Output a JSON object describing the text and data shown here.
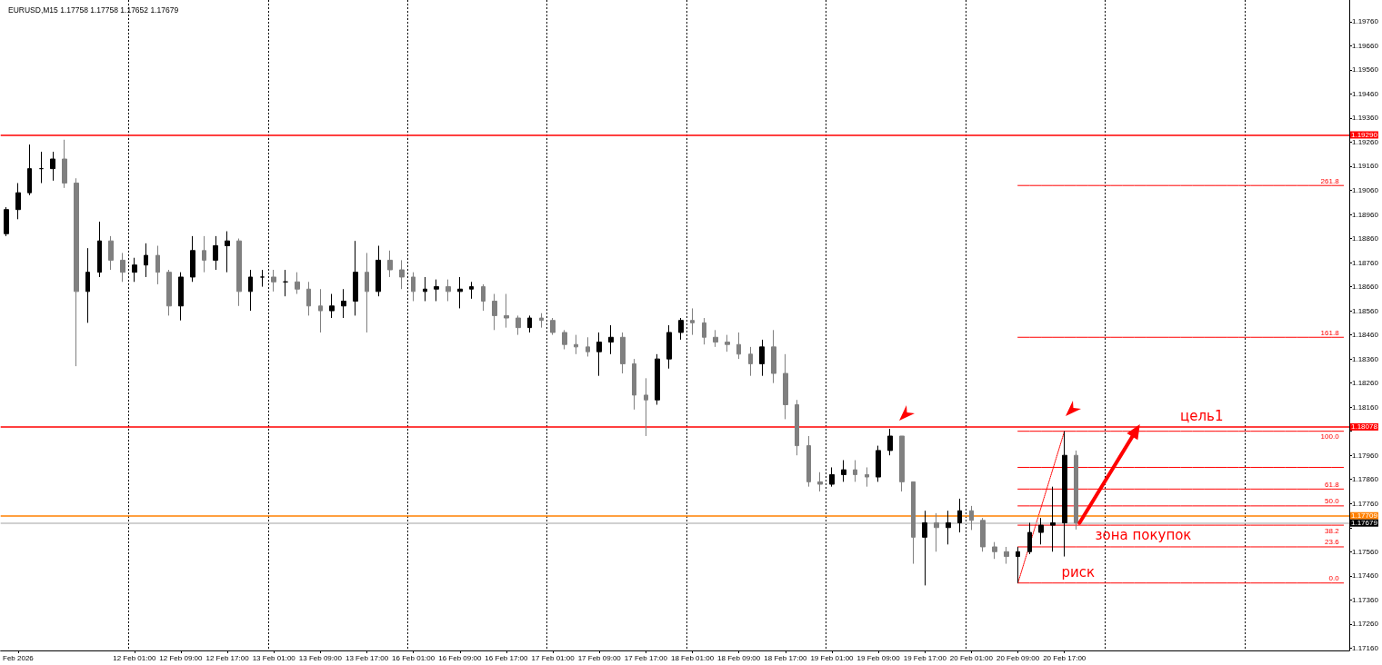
{
  "chart_data": {
    "type": "candlestick",
    "title": "EURUSD,M15 1.17758 1.17758 1.17652 1.17679",
    "categories": [
      null,
      "Feb 2026",
      null,
      null,
      null,
      null,
      null,
      null,
      null,
      null,
      null,
      "12 Feb 01:00",
      null,
      null,
      null,
      "12 Feb 09:00",
      null,
      null,
      null,
      "12 Feb 17:00",
      null,
      null,
      null,
      "13 Feb 01:00",
      null,
      null,
      null,
      "13 Feb 09:00",
      null,
      null,
      null,
      "13 Feb 17:00",
      null,
      null,
      null,
      "16 Feb 01:00",
      null,
      null,
      null,
      "16 Feb 09:00",
      null,
      null,
      null,
      "16 Feb 17:00",
      null,
      null,
      null,
      "17 Feb 01:00",
      null,
      null,
      null,
      "17 Feb 09:00",
      null,
      null,
      null,
      "17 Feb 17:00",
      null,
      null,
      null,
      "18 Feb 01:00",
      null,
      null,
      null,
      "18 Feb 09:00",
      null,
      null,
      null,
      "18 Feb 17:00",
      null,
      null,
      null,
      "19 Feb 01:00",
      null,
      null,
      null,
      "19 Feb 09:00",
      null,
      null,
      null,
      "19 Feb 17:00",
      null,
      null,
      null,
      "20 Feb 01:00",
      null,
      null,
      null,
      "20 Feb 09:00",
      null,
      null,
      null,
      "20 Feb 17:00",
      null,
      null,
      null,
      null,
      null,
      null,
      null,
      null,
      null,
      null,
      null,
      null,
      null,
      null,
      null,
      null,
      null,
      null,
      null,
      null,
      null,
      null,
      null,
      null
    ],
    "ohlc": [
      [
        1.1888,
        1.1899,
        1.1887,
        1.1898
      ],
      [
        1.1898,
        1.1909,
        1.1894,
        1.1905
      ],
      [
        1.1905,
        1.1925,
        1.1904,
        1.1915
      ],
      [
        1.1915,
        1.1922,
        1.1909,
        1.1915
      ],
      [
        1.1915,
        1.1922,
        1.191,
        1.1919
      ],
      [
        1.1919,
        1.1927,
        1.1907,
        1.1909
      ],
      [
        1.1909,
        1.1911,
        1.1833,
        1.1864
      ],
      [
        1.1864,
        1.1882,
        1.1851,
        1.1872
      ],
      [
        1.1872,
        1.1893,
        1.187,
        1.1885
      ],
      [
        1.1885,
        1.1887,
        1.1873,
        1.1877
      ],
      [
        1.1877,
        1.188,
        1.1868,
        1.1872
      ],
      [
        1.1872,
        1.1878,
        1.1868,
        1.1875
      ],
      [
        1.1875,
        1.1884,
        1.187,
        1.1879
      ],
      [
        1.1879,
        1.1883,
        1.1867,
        1.1872
      ],
      [
        1.1872,
        1.1873,
        1.1854,
        1.1858
      ],
      [
        1.1858,
        1.1872,
        1.1852,
        1.187
      ],
      [
        1.187,
        1.1887,
        1.1868,
        1.1881
      ],
      [
        1.1881,
        1.1887,
        1.1872,
        1.1877
      ],
      [
        1.1877,
        1.1887,
        1.1873,
        1.1883
      ],
      [
        1.1883,
        1.1889,
        1.1872,
        1.1885
      ],
      [
        1.1885,
        1.1886,
        1.1858,
        1.1864
      ],
      [
        1.1864,
        1.1873,
        1.1856,
        1.187
      ],
      [
        1.187,
        1.1873,
        1.1866,
        1.187
      ],
      [
        1.187,
        1.1873,
        1.1864,
        1.1868
      ],
      [
        1.1868,
        1.1873,
        1.1862,
        1.1868
      ],
      [
        1.1868,
        1.1872,
        1.1863,
        1.1865
      ],
      [
        1.1865,
        1.1868,
        1.1854,
        1.1858
      ],
      [
        1.1858,
        1.1865,
        1.1847,
        1.1856
      ],
      [
        1.1856,
        1.1863,
        1.1853,
        1.1858
      ],
      [
        1.1858,
        1.1865,
        1.1853,
        1.186
      ],
      [
        1.186,
        1.1885,
        1.1854,
        1.1872
      ],
      [
        1.1872,
        1.188,
        1.1847,
        1.1864
      ],
      [
        1.1864,
        1.1883,
        1.1862,
        1.1877
      ],
      [
        1.1877,
        1.1881,
        1.187,
        1.1873
      ],
      [
        1.1873,
        1.1877,
        1.1865,
        1.187
      ],
      [
        1.187,
        1.1872,
        1.186,
        1.1864
      ],
      [
        1.1864,
        1.187,
        1.186,
        1.1865
      ],
      [
        1.1865,
        1.1869,
        1.186,
        1.1866
      ],
      [
        1.1866,
        1.1869,
        1.186,
        1.1864
      ],
      [
        1.1864,
        1.187,
        1.1857,
        1.1865
      ],
      [
        1.1865,
        1.1868,
        1.1861,
        1.1866
      ],
      [
        1.1866,
        1.1867,
        1.1856,
        1.186
      ],
      [
        1.186,
        1.1863,
        1.1848,
        1.1854
      ],
      [
        1.1854,
        1.1863,
        1.1849,
        1.1853
      ],
      [
        1.1853,
        1.1854,
        1.1846,
        1.1849
      ],
      [
        1.1849,
        1.1854,
        1.1847,
        1.1853
      ],
      [
        1.1853,
        1.1855,
        1.1849,
        1.1852
      ],
      [
        1.1852,
        1.1853,
        1.1846,
        1.1847
      ],
      [
        1.1847,
        1.1848,
        1.184,
        1.1842
      ],
      [
        1.1842,
        1.1846,
        1.1838,
        1.1841
      ],
      [
        1.1841,
        1.1845,
        1.1837,
        1.1839
      ],
      [
        1.1839,
        1.1847,
        1.1829,
        1.1843
      ],
      [
        1.1843,
        1.185,
        1.1838,
        1.1845
      ],
      [
        1.1845,
        1.1847,
        1.183,
        1.1834
      ],
      [
        1.1834,
        1.1836,
        1.1815,
        1.1821
      ],
      [
        1.1821,
        1.1828,
        1.1804,
        1.1819
      ],
      [
        1.1819,
        1.1838,
        1.1817,
        1.1836
      ],
      [
        1.1836,
        1.185,
        1.1832,
        1.1847
      ],
      [
        1.1847,
        1.1853,
        1.1844,
        1.1852
      ],
      [
        1.1852,
        1.1857,
        1.1846,
        1.1851
      ],
      [
        1.1851,
        1.1853,
        1.1842,
        1.1845
      ],
      [
        1.1845,
        1.1848,
        1.1841,
        1.1843
      ],
      [
        1.1843,
        1.1846,
        1.1839,
        1.1842
      ],
      [
        1.1842,
        1.1847,
        1.1836,
        1.1838
      ],
      [
        1.1838,
        1.1841,
        1.1829,
        1.1834
      ],
      [
        1.1834,
        1.1844,
        1.1829,
        1.1841
      ],
      [
        1.1841,
        1.1848,
        1.1826,
        1.183
      ],
      [
        1.183,
        1.1838,
        1.1811,
        1.1817
      ],
      [
        1.1817,
        1.1819,
        1.1796,
        1.18
      ],
      [
        1.18,
        1.1804,
        1.1783,
        1.1785
      ],
      [
        1.1785,
        1.1789,
        1.1781,
        1.1784
      ],
      [
        1.1784,
        1.1791,
        1.1783,
        1.1788
      ],
      [
        1.1788,
        1.1794,
        1.1785,
        1.179
      ],
      [
        1.179,
        1.1794,
        1.1785,
        1.1788
      ],
      [
        1.1788,
        1.1791,
        1.1783,
        1.1787
      ],
      [
        1.1787,
        1.18,
        1.1785,
        1.1798
      ],
      [
        1.1798,
        1.1807,
        1.1796,
        1.1804
      ],
      [
        1.1804,
        1.1804,
        1.1781,
        1.1785
      ],
      [
        1.1785,
        1.1785,
        1.1751,
        1.1762
      ],
      [
        1.1762,
        1.1773,
        1.1742,
        1.1768
      ],
      [
        1.1768,
        1.1772,
        1.1756,
        1.1766
      ],
      [
        1.1766,
        1.1773,
        1.1759,
        1.1768
      ],
      [
        1.1768,
        1.1778,
        1.1764,
        1.1773
      ],
      [
        1.1773,
        1.1775,
        1.1765,
        1.1769
      ],
      [
        1.1769,
        1.177,
        1.1756,
        1.1758
      ],
      [
        1.1758,
        1.176,
        1.1753,
        1.1756
      ],
      [
        1.1756,
        1.1758,
        1.1751,
        1.1754
      ],
      [
        1.1754,
        1.1758,
        1.1743,
        1.1756
      ],
      [
        1.1756,
        1.1768,
        1.1755,
        1.1764
      ],
      [
        1.1764,
        1.177,
        1.1759,
        1.1767
      ],
      [
        1.1767,
        1.1783,
        1.1756,
        1.1768
      ],
      [
        1.1768,
        1.1806,
        1.1754,
        1.1796
      ],
      [
        1.1796,
        1.1798,
        1.17652,
        1.17679
      ],
      null,
      null,
      null,
      null,
      null,
      null,
      null,
      null,
      null,
      null,
      null,
      null,
      null,
      null,
      null,
      null,
      null,
      null,
      null,
      null,
      null,
      null,
      null
    ],
    "colors": [
      "#000000",
      "#000000",
      "#000000",
      "#000000",
      "#000000",
      "#808080",
      "#808080",
      "#000000",
      "#000000",
      "#808080",
      "#808080",
      "#000000",
      "#000000",
      "#808080",
      "#808080",
      "#000000",
      "#000000",
      "#808080",
      "#000000",
      "#000000",
      "#808080",
      "#000000",
      "#000000",
      "#808080",
      "#000000",
      "#808080",
      "#808080",
      "#808080",
      "#000000",
      "#000000",
      "#000000",
      "#808080",
      "#000000",
      "#808080",
      "#808080",
      "#808080",
      "#000000",
      "#000000",
      "#808080",
      "#000000",
      "#000000",
      "#808080",
      "#808080",
      "#808080",
      "#808080",
      "#000000",
      "#808080",
      "#808080",
      "#808080",
      "#808080",
      "#808080",
      "#000000",
      "#000000",
      "#808080",
      "#808080",
      "#808080",
      "#000000",
      "#000000",
      "#000000",
      "#808080",
      "#808080",
      "#808080",
      "#808080",
      "#808080",
      "#808080",
      "#000000",
      "#808080",
      "#808080",
      "#808080",
      "#808080",
      "#808080",
      "#000000",
      "#000000",
      "#808080",
      "#808080",
      "#000000",
      "#000000",
      "#808080",
      "#808080",
      "#000000",
      "#808080",
      "#000000",
      "#000000",
      "#808080",
      "#808080",
      "#808080",
      "#808080",
      "#000000",
      "#000000",
      "#000000",
      "#000000",
      "#000000",
      "#808080",
      null,
      null,
      null,
      null,
      null,
      null,
      null,
      null,
      null,
      null,
      null,
      null,
      null,
      null,
      null,
      null,
      null,
      null,
      null,
      null,
      null,
      null,
      null
    ],
    "series": [
      {
        "type": "line",
        "name": "261.8",
        "color": "#ff0000",
        "values": [
          null,
          null,
          null,
          null,
          null,
          null,
          null,
          null,
          null,
          null,
          null,
          null,
          null,
          null,
          null,
          null,
          null,
          null,
          null,
          null,
          null,
          null,
          null,
          null,
          null,
          null,
          null,
          null,
          null,
          null,
          null,
          null,
          null,
          null,
          null,
          null,
          null,
          null,
          null,
          null,
          null,
          null,
          null,
          null,
          null,
          null,
          null,
          null,
          null,
          null,
          null,
          null,
          null,
          null,
          null,
          null,
          null,
          null,
          null,
          null,
          null,
          null,
          null,
          null,
          null,
          null,
          null,
          null,
          null,
          null,
          null,
          null,
          null,
          null,
          null,
          null,
          null,
          null,
          null,
          null,
          null,
          null,
          null,
          null,
          null,
          null,
          null,
          1.1908,
          1.1908,
          1.1908,
          1.1908,
          1.1908,
          1.1908,
          1.1908,
          1.1908,
          1.1908,
          1.1908,
          1.1908,
          1.1908,
          1.1908,
          1.1908,
          1.1908,
          1.1908,
          1.1908,
          1.1908,
          1.1908,
          1.1908,
          1.1908,
          1.1908,
          1.1908,
          1.1908,
          1.1908,
          1.1908,
          1.1908,
          1.1908,
          1.1908
        ]
      },
      {
        "type": "line",
        "name": "161.8",
        "color": "#ff0000",
        "values": [
          null,
          null,
          null,
          null,
          null,
          null,
          null,
          null,
          null,
          null,
          null,
          null,
          null,
          null,
          null,
          null,
          null,
          null,
          null,
          null,
          null,
          null,
          null,
          null,
          null,
          null,
          null,
          null,
          null,
          null,
          null,
          null,
          null,
          null,
          null,
          null,
          null,
          null,
          null,
          null,
          null,
          null,
          null,
          null,
          null,
          null,
          null,
          null,
          null,
          null,
          null,
          null,
          null,
          null,
          null,
          null,
          null,
          null,
          null,
          null,
          null,
          null,
          null,
          null,
          null,
          null,
          null,
          null,
          null,
          null,
          null,
          null,
          null,
          null,
          null,
          null,
          null,
          null,
          null,
          null,
          null,
          null,
          null,
          null,
          null,
          null,
          null,
          1.1845,
          1.1845,
          1.1845,
          1.1845,
          1.1845,
          1.1845,
          1.1845,
          1.1845,
          1.1845,
          1.1845,
          1.1845,
          1.1845,
          1.1845,
          1.1845,
          1.1845,
          1.1845,
          1.1845,
          1.1845,
          1.1845,
          1.1845,
          1.1845,
          1.1845,
          1.1845,
          1.1845,
          1.1845,
          1.1845,
          1.1845,
          1.1845,
          1.1845
        ]
      },
      {
        "type": "line",
        "name": "100.0",
        "color": "#ff0000",
        "values": [
          null,
          null,
          null,
          null,
          null,
          null,
          null,
          null,
          null,
          null,
          null,
          null,
          null,
          null,
          null,
          null,
          null,
          null,
          null,
          null,
          null,
          null,
          null,
          null,
          null,
          null,
          null,
          null,
          null,
          null,
          null,
          null,
          null,
          null,
          null,
          null,
          null,
          null,
          null,
          null,
          null,
          null,
          null,
          null,
          null,
          null,
          null,
          null,
          null,
          null,
          null,
          null,
          null,
          null,
          null,
          null,
          null,
          null,
          null,
          null,
          null,
          null,
          null,
          null,
          null,
          null,
          null,
          null,
          null,
          null,
          null,
          null,
          null,
          null,
          null,
          null,
          null,
          null,
          null,
          null,
          null,
          null,
          null,
          null,
          null,
          null,
          null,
          1.1806,
          1.1806,
          1.1806,
          1.1806,
          1.1806,
          1.1806,
          1.1806,
          1.1806,
          1.1806,
          1.1806,
          1.1806,
          1.1806,
          1.1806,
          1.1806,
          1.1806,
          1.1806,
          1.1806,
          1.1806,
          1.1806,
          1.1806,
          1.1806,
          1.1806,
          1.1806,
          1.1806,
          1.1806,
          1.1806,
          1.1806,
          1.1806,
          1.1806
        ]
      },
      {
        "type": "line",
        "color": "#ff0000",
        "values": [
          null,
          null,
          null,
          null,
          null,
          null,
          null,
          null,
          null,
          null,
          null,
          null,
          null,
          null,
          null,
          null,
          null,
          null,
          null,
          null,
          null,
          null,
          null,
          null,
          null,
          null,
          null,
          null,
          null,
          null,
          null,
          null,
          null,
          null,
          null,
          null,
          null,
          null,
          null,
          null,
          null,
          null,
          null,
          null,
          null,
          null,
          null,
          null,
          null,
          null,
          null,
          null,
          null,
          null,
          null,
          null,
          null,
          null,
          null,
          null,
          null,
          null,
          null,
          null,
          null,
          null,
          null,
          null,
          null,
          null,
          null,
          null,
          null,
          null,
          null,
          null,
          null,
          null,
          null,
          null,
          null,
          null,
          null,
          null,
          null,
          null,
          null,
          1.1791,
          1.1791,
          1.1791,
          1.1791,
          1.1791,
          1.1791,
          1.1791,
          1.1791,
          1.1791,
          1.1791,
          1.1791,
          1.1791,
          1.1791,
          1.1791,
          1.1791,
          1.1791,
          1.1791,
          1.1791,
          1.1791,
          1.1791,
          1.1791,
          1.1791,
          1.1791,
          1.1791,
          1.1791,
          1.1791,
          1.1791,
          1.1791,
          1.1791
        ]
      },
      {
        "type": "line",
        "name": "61.8",
        "color": "#ff0000",
        "values": [
          null,
          null,
          null,
          null,
          null,
          null,
          null,
          null,
          null,
          null,
          null,
          null,
          null,
          null,
          null,
          null,
          null,
          null,
          null,
          null,
          null,
          null,
          null,
          null,
          null,
          null,
          null,
          null,
          null,
          null,
          null,
          null,
          null,
          null,
          null,
          null,
          null,
          null,
          null,
          null,
          null,
          null,
          null,
          null,
          null,
          null,
          null,
          null,
          null,
          null,
          null,
          null,
          null,
          null,
          null,
          null,
          null,
          null,
          null,
          null,
          null,
          null,
          null,
          null,
          null,
          null,
          null,
          null,
          null,
          null,
          null,
          null,
          null,
          null,
          null,
          null,
          null,
          null,
          null,
          null,
          null,
          null,
          null,
          null,
          null,
          null,
          null,
          1.1782,
          1.1782,
          1.1782,
          1.1782,
          1.1782,
          1.1782,
          1.1782,
          1.1782,
          1.1782,
          1.1782,
          1.1782,
          1.1782,
          1.1782,
          1.1782,
          1.1782,
          1.1782,
          1.1782,
          1.1782,
          1.1782,
          1.1782,
          1.1782,
          1.1782,
          1.1782,
          1.1782,
          1.1782,
          1.1782,
          1.1782,
          1.1782,
          1.1782
        ]
      },
      {
        "type": "line",
        "name": "50.0",
        "color": "#ff0000",
        "values": [
          null,
          null,
          null,
          null,
          null,
          null,
          null,
          null,
          null,
          null,
          null,
          null,
          null,
          null,
          null,
          null,
          null,
          null,
          null,
          null,
          null,
          null,
          null,
          null,
          null,
          null,
          null,
          null,
          null,
          null,
          null,
          null,
          null,
          null,
          null,
          null,
          null,
          null,
          null,
          null,
          null,
          null,
          null,
          null,
          null,
          null,
          null,
          null,
          null,
          null,
          null,
          null,
          null,
          null,
          null,
          null,
          null,
          null,
          null,
          null,
          null,
          null,
          null,
          null,
          null,
          null,
          null,
          null,
          null,
          null,
          null,
          null,
          null,
          null,
          null,
          null,
          null,
          null,
          null,
          null,
          null,
          null,
          null,
          null,
          null,
          null,
          null,
          1.1775,
          1.1775,
          1.1775,
          1.1775,
          1.1775,
          1.1775,
          1.1775,
          1.1775,
          1.1775,
          1.1775,
          1.1775,
          1.1775,
          1.1775,
          1.1775,
          1.1775,
          1.1775,
          1.1775,
          1.1775,
          1.1775,
          1.1775,
          1.1775,
          1.1775,
          1.1775,
          1.1775,
          1.1775,
          1.1775,
          1.1775,
          1.1775,
          1.1775
        ]
      },
      {
        "type": "line",
        "name": "38.2",
        "color": "#ff0000",
        "values": [
          null,
          null,
          null,
          null,
          null,
          null,
          null,
          null,
          null,
          null,
          null,
          null,
          null,
          null,
          null,
          null,
          null,
          null,
          null,
          null,
          null,
          null,
          null,
          null,
          null,
          null,
          null,
          null,
          null,
          null,
          null,
          null,
          null,
          null,
          null,
          null,
          null,
          null,
          null,
          null,
          null,
          null,
          null,
          null,
          null,
          null,
          null,
          null,
          null,
          null,
          null,
          null,
          null,
          null,
          null,
          null,
          null,
          null,
          null,
          null,
          null,
          null,
          null,
          null,
          null,
          null,
          null,
          null,
          null,
          null,
          null,
          null,
          null,
          null,
          null,
          null,
          null,
          null,
          null,
          null,
          null,
          null,
          null,
          null,
          null,
          null,
          null,
          1.1767,
          1.1767,
          1.1767,
          1.1767,
          1.1767,
          1.1767,
          1.1767,
          1.1767,
          1.1767,
          1.1767,
          1.1767,
          1.1767,
          1.1767,
          1.1767,
          1.1767,
          1.1767,
          1.1767,
          1.1767,
          1.1767,
          1.1767,
          1.1767,
          1.1767,
          1.1767,
          1.1767,
          1.1767,
          1.1767,
          1.1767,
          1.1767,
          1.1767
        ]
      },
      {
        "type": "line",
        "name": "23.6",
        "color": "#ff0000",
        "values": [
          null,
          null,
          null,
          null,
          null,
          null,
          null,
          null,
          null,
          null,
          null,
          null,
          null,
          null,
          null,
          null,
          null,
          null,
          null,
          null,
          null,
          null,
          null,
          null,
          null,
          null,
          null,
          null,
          null,
          null,
          null,
          null,
          null,
          null,
          null,
          null,
          null,
          null,
          null,
          null,
          null,
          null,
          null,
          null,
          null,
          null,
          null,
          null,
          null,
          null,
          null,
          null,
          null,
          null,
          null,
          null,
          null,
          null,
          null,
          null,
          null,
          null,
          null,
          null,
          null,
          null,
          null,
          null,
          null,
          null,
          null,
          null,
          null,
          null,
          null,
          null,
          null,
          null,
          null,
          null,
          null,
          null,
          null,
          null,
          null,
          null,
          null,
          1.1758,
          1.1758,
          1.1758,
          1.1758,
          1.1758,
          1.1758,
          1.1758,
          1.1758,
          1.1758,
          1.1758,
          1.1758,
          1.1758,
          1.1758,
          1.1758,
          1.1758,
          1.1758,
          1.1758,
          1.1758,
          1.1758,
          1.1758,
          1.1758,
          1.1758,
          1.1758,
          1.1758,
          1.1758,
          1.1758,
          1.1758,
          1.1758,
          1.1758
        ]
      },
      {
        "type": "line",
        "name": "0.0",
        "color": "#ff0000",
        "values": [
          null,
          null,
          null,
          null,
          null,
          null,
          null,
          null,
          null,
          null,
          null,
          null,
          null,
          null,
          null,
          null,
          null,
          null,
          null,
          null,
          null,
          null,
          null,
          null,
          null,
          null,
          null,
          null,
          null,
          null,
          null,
          null,
          null,
          null,
          null,
          null,
          null,
          null,
          null,
          null,
          null,
          null,
          null,
          null,
          null,
          null,
          null,
          null,
          null,
          null,
          null,
          null,
          null,
          null,
          null,
          null,
          null,
          null,
          null,
          null,
          null,
          null,
          null,
          null,
          null,
          null,
          null,
          null,
          null,
          null,
          null,
          null,
          null,
          null,
          null,
          null,
          null,
          null,
          null,
          null,
          null,
          null,
          null,
          null,
          null,
          null,
          null,
          1.1743,
          1.1743,
          1.1743,
          1.1743,
          1.1743,
          1.1743,
          1.1743,
          1.1743,
          1.1743,
          1.1743,
          1.1743,
          1.1743,
          1.1743,
          1.1743,
          1.1743,
          1.1743,
          1.1743,
          1.1743,
          1.1743,
          1.1743,
          1.1743,
          1.1743,
          1.1743,
          1.1743,
          1.1743,
          1.1743,
          1.1743,
          1.1743,
          1.1743
        ]
      },
      {
        "type": "line",
        "color": "#ff0000",
        "line_style": "dotted",
        "values": [
          null,
          null,
          null,
          null,
          null,
          null,
          null,
          null,
          null,
          null,
          null,
          null,
          null,
          null,
          null,
          null,
          null,
          null,
          null,
          null,
          null,
          null,
          null,
          null,
          null,
          null,
          null,
          null,
          null,
          null,
          null,
          null,
          null,
          null,
          null,
          null,
          null,
          null,
          null,
          null,
          null,
          null,
          null,
          null,
          null,
          null,
          null,
          null,
          null,
          null,
          null,
          null,
          null,
          null,
          null,
          null,
          null,
          null,
          null,
          null,
          null,
          null,
          null,
          null,
          null,
          null,
          null,
          null,
          null,
          null,
          null,
          null,
          null,
          null,
          null,
          null,
          null,
          null,
          null,
          null,
          null,
          null,
          null,
          null,
          null,
          null,
          null,
          1.1743,
          null,
          null,
          null,
          1.1806,
          null,
          null,
          null,
          null,
          null,
          null,
          null,
          null,
          null,
          null,
          null,
          null,
          null,
          null,
          null,
          null,
          null,
          null,
          null,
          null,
          null,
          null,
          null,
          null
        ]
      }
    ],
    "ylim": [
      1.1715,
      1.1985
    ],
    "yticks": [
      {
        "value": 1.1716,
        "label": "1.17160"
      },
      {
        "value": 1.1726,
        "label": "1.17260"
      },
      {
        "value": 1.1736,
        "label": "1.17360"
      },
      {
        "value": 1.1746,
        "label": "1.17460"
      },
      {
        "value": 1.1756,
        "label": "1.17560"
      },
      {
        "value": 1.1766,
        "label": null
      },
      {
        "value": 1.1776,
        "label": "1.17760"
      },
      {
        "value": 1.1786,
        "label": "1.17860"
      },
      {
        "value": 1.1796,
        "label": "1.17960"
      },
      {
        "value": 1.1806,
        "label": null
      },
      {
        "value": 1.1816,
        "label": "1.18160"
      },
      {
        "value": 1.1826,
        "label": "1.18260"
      },
      {
        "value": 1.1836,
        "label": "1.18360"
      },
      {
        "value": 1.1846,
        "label": "1.18460"
      },
      {
        "value": 1.1856,
        "label": "1.18560"
      },
      {
        "value": 1.1866,
        "label": "1.18660"
      },
      {
        "value": 1.1876,
        "label": "1.18760"
      },
      {
        "value": 1.1886,
        "label": "1.18860"
      },
      {
        "value": 1.1896,
        "label": "1.18960"
      },
      {
        "value": 1.1906,
        "label": "1.19060"
      },
      {
        "value": 1.1916,
        "label": "1.19160"
      },
      {
        "value": 1.1926,
        "label": "1.19260"
      },
      {
        "value": 1.1936,
        "label": "1.19360"
      },
      {
        "value": 1.1946,
        "label": "1.19460"
      },
      {
        "value": 1.1956,
        "label": "1.19560"
      },
      {
        "value": 1.1966,
        "label": "1.19660"
      },
      {
        "value": 1.1976,
        "label": "1.19760"
      }
    ],
    "ref_lines": [
      {
        "axis": "y",
        "value": 1.1929,
        "label": "1.19290",
        "color": "#ff0000"
      },
      {
        "axis": "y",
        "value": 1.18078,
        "label": "1.18078",
        "color": "#ff0000"
      },
      {
        "axis": "y",
        "value": 1.17709,
        "label": "1.17709",
        "color": "#ff8000"
      },
      {
        "axis": "y",
        "value": 1.17679,
        "label": "1.17679",
        "color": "#c0c0c0"
      }
    ],
    "annotations": [
      {
        "text": "цель1",
        "y": 1.18078
      },
      {
        "text": "зона покупок",
        "y": 1.1767
      },
      {
        "text": "риск",
        "y": 1.1743
      }
    ],
    "grid": "x",
    "marker": "none",
    "line_style": "solid"
  }
}
